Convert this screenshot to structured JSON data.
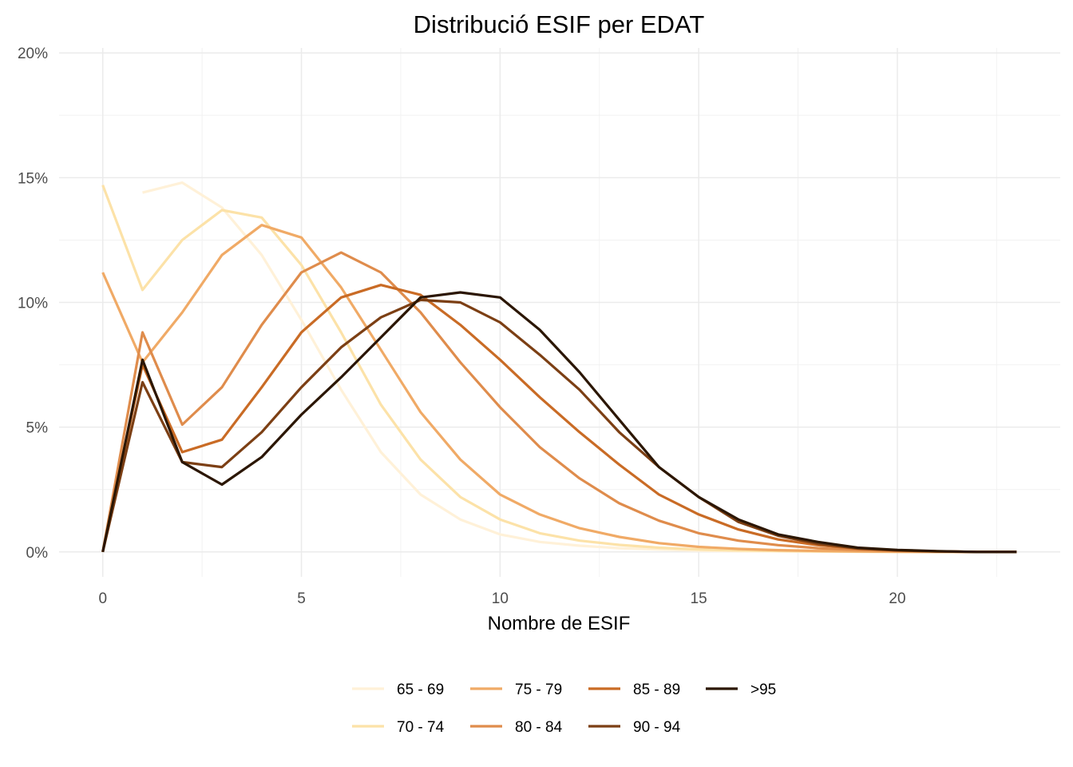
{
  "chart_data": {
    "type": "line",
    "title": "Distribució ESIF per EDAT",
    "xlabel": "Nombre de ESIF",
    "ylabel": "",
    "xlim": [
      -1.1,
      24.1
    ],
    "ylim": [
      -1,
      20.2
    ],
    "x_ticks": [
      0,
      5,
      10,
      15,
      20
    ],
    "y_ticks": [
      0,
      5,
      10,
      15,
      20
    ],
    "x_tick_labels": [
      "0",
      "5",
      "10",
      "15",
      "20"
    ],
    "y_tick_labels": [
      "0%",
      "5%",
      "10%",
      "15%",
      "20%"
    ],
    "grid": true,
    "legend_position": "bottom",
    "series": [
      {
        "name": "65 - 69",
        "color": "#fff1d8",
        "x": [
          1,
          2,
          3,
          4,
          5,
          6,
          7,
          8,
          9,
          10,
          11,
          12,
          13,
          14,
          15,
          16,
          17,
          18,
          19,
          20,
          21,
          22,
          23
        ],
        "y": [
          14.4,
          14.8,
          13.8,
          11.9,
          9.3,
          6.5,
          4.0,
          2.3,
          1.3,
          0.7,
          0.4,
          0.25,
          0.15,
          0.1,
          0.05,
          0.03,
          0.02,
          0.01,
          0.01,
          0,
          0,
          0,
          0
        ]
      },
      {
        "name": "70 - 74",
        "color": "#fce2a8",
        "x": [
          0,
          1,
          2,
          3,
          4,
          5,
          6,
          7,
          8,
          9,
          10,
          11,
          12,
          13,
          14,
          15,
          16,
          17,
          18,
          19,
          20,
          21,
          22,
          23
        ],
        "y": [
          14.7,
          10.5,
          12.5,
          13.7,
          13.4,
          11.5,
          8.8,
          5.9,
          3.7,
          2.2,
          1.3,
          0.75,
          0.45,
          0.28,
          0.17,
          0.1,
          0.06,
          0.04,
          0.02,
          0.01,
          0,
          0,
          0,
          0
        ]
      },
      {
        "name": "75 - 79",
        "color": "#f0aa66",
        "x": [
          0,
          1,
          2,
          3,
          4,
          5,
          6,
          7,
          8,
          9,
          10,
          11,
          12,
          13,
          14,
          15,
          16,
          17,
          18,
          19,
          20,
          21,
          22,
          23
        ],
        "y": [
          11.2,
          7.6,
          9.6,
          11.9,
          13.1,
          12.6,
          10.6,
          8.1,
          5.6,
          3.7,
          2.3,
          1.5,
          0.95,
          0.6,
          0.35,
          0.2,
          0.12,
          0.07,
          0.04,
          0.02,
          0.01,
          0,
          0,
          0
        ]
      },
      {
        "name": "80 - 84",
        "color": "#df8c4c",
        "x": [
          0,
          1,
          2,
          3,
          4,
          5,
          6,
          7,
          8,
          9,
          10,
          11,
          12,
          13,
          14,
          15,
          16,
          17,
          18,
          19,
          20,
          21,
          22,
          23
        ],
        "y": [
          0,
          8.8,
          5.1,
          6.6,
          9.1,
          11.2,
          12.0,
          11.2,
          9.6,
          7.6,
          5.8,
          4.2,
          2.95,
          1.95,
          1.25,
          0.75,
          0.45,
          0.27,
          0.15,
          0.08,
          0.04,
          0.02,
          0,
          0
        ]
      },
      {
        "name": "85 - 89",
        "color": "#c96b25",
        "x": [
          0,
          1,
          2,
          3,
          4,
          5,
          6,
          7,
          8,
          9,
          10,
          11,
          12,
          13,
          14,
          15,
          16,
          17,
          18,
          19,
          20,
          21,
          22,
          23
        ],
        "y": [
          0,
          7.5,
          4.0,
          4.5,
          6.6,
          8.8,
          10.2,
          10.7,
          10.3,
          9.1,
          7.7,
          6.2,
          4.8,
          3.5,
          2.3,
          1.5,
          0.9,
          0.5,
          0.27,
          0.13,
          0.06,
          0.02,
          0,
          0
        ]
      },
      {
        "name": "90 - 94",
        "color": "#7c3f14",
        "x": [
          0,
          1,
          2,
          3,
          4,
          5,
          6,
          7,
          8,
          9,
          10,
          11,
          12,
          13,
          14,
          15,
          16,
          17,
          18,
          19,
          20,
          21,
          22,
          23
        ],
        "y": [
          0,
          6.8,
          3.6,
          3.4,
          4.8,
          6.6,
          8.2,
          9.4,
          10.1,
          10.0,
          9.2,
          7.9,
          6.5,
          4.8,
          3.4,
          2.2,
          1.2,
          0.65,
          0.33,
          0.14,
          0.06,
          0.02,
          0,
          0
        ]
      },
      {
        "name": ">95",
        "color": "#2b1603",
        "x": [
          0,
          1,
          2,
          3,
          4,
          5,
          6,
          7,
          8,
          9,
          10,
          11,
          12,
          13,
          14,
          15,
          16,
          17,
          18,
          19,
          20,
          21,
          22,
          23
        ],
        "y": [
          0,
          7.7,
          3.6,
          2.7,
          3.8,
          5.5,
          7.0,
          8.6,
          10.2,
          10.4,
          10.2,
          8.9,
          7.2,
          5.3,
          3.4,
          2.2,
          1.3,
          0.7,
          0.4,
          0.17,
          0.08,
          0.03,
          0,
          0
        ]
      }
    ]
  }
}
